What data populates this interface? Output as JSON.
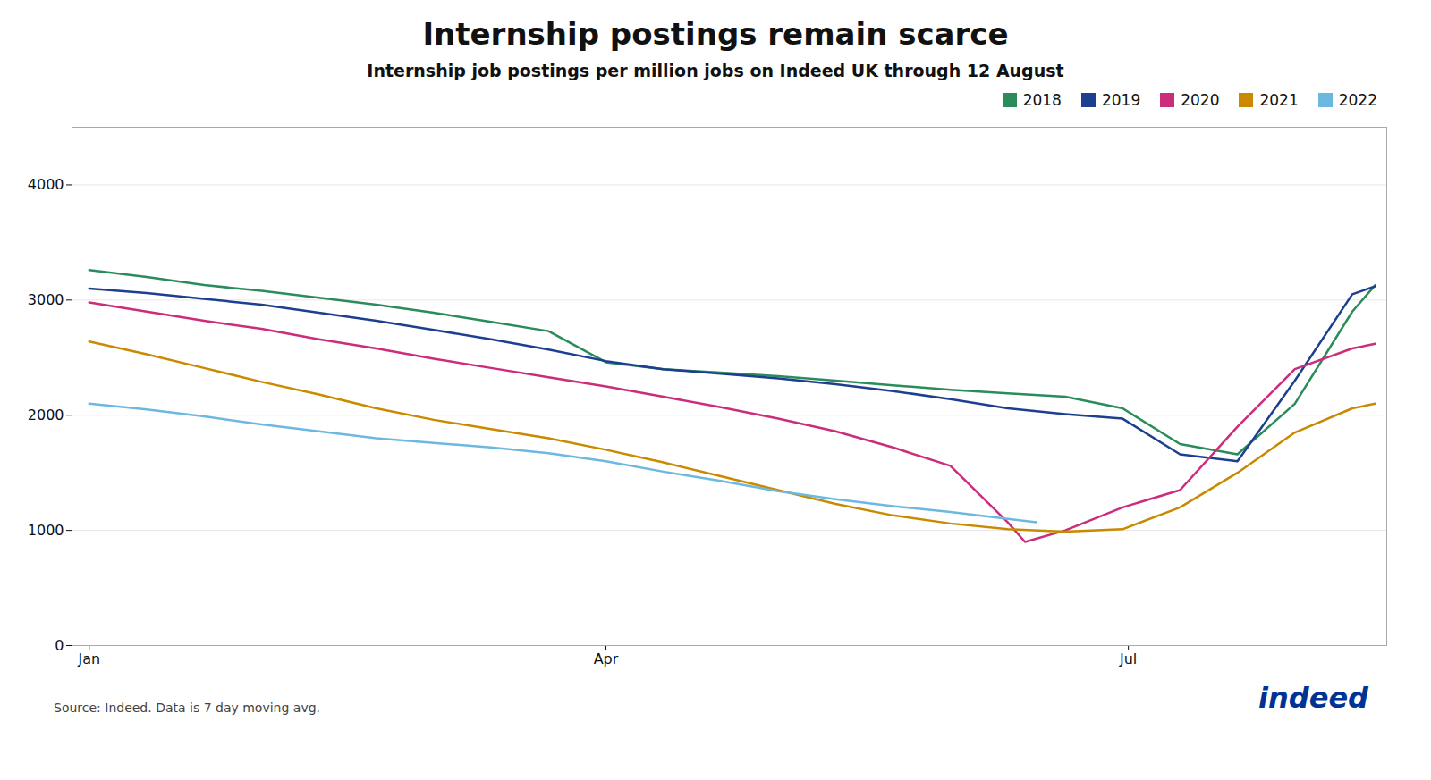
{
  "chart_data": {
    "type": "line",
    "title": "Internship postings remain scarce",
    "subtitle": "Internship job postings per million jobs on Indeed UK through 12 August",
    "annotations": [
      "Source: Indeed. Data is 7 day moving avg.",
      "indeed"
    ],
    "xlim": [
      -3,
      226
    ],
    "xticks": [
      {
        "value": 0,
        "label": "Jan"
      },
      {
        "value": 90,
        "label": "Apr"
      },
      {
        "value": 181,
        "label": "Jul"
      }
    ],
    "ylim": [
      0,
      4500
    ],
    "yticks": [
      0,
      1000,
      2000,
      3000,
      4000
    ],
    "grid": true,
    "legend": "upper right",
    "series": [
      {
        "name": "2018",
        "color": "#2a8c5a",
        "x": [
          0,
          10,
          20,
          30,
          40,
          50,
          60,
          70,
          80,
          90,
          100,
          110,
          120,
          130,
          140,
          150,
          160,
          170,
          180,
          190,
          200,
          210,
          220,
          224
        ],
        "values": [
          3260,
          3200,
          3130,
          3080,
          3020,
          2960,
          2890,
          2810,
          2730,
          2460,
          2400,
          2370,
          2340,
          2300,
          2260,
          2220,
          2190,
          2160,
          2060,
          1750,
          1660,
          2100,
          2900,
          3130
        ]
      },
      {
        "name": "2019",
        "color": "#1c3f8f",
        "x": [
          0,
          10,
          20,
          30,
          40,
          50,
          60,
          70,
          80,
          90,
          100,
          110,
          120,
          130,
          140,
          150,
          160,
          170,
          180,
          190,
          200,
          210,
          220,
          224
        ],
        "values": [
          3100,
          3060,
          3010,
          2960,
          2890,
          2820,
          2740,
          2660,
          2570,
          2470,
          2400,
          2360,
          2320,
          2270,
          2210,
          2140,
          2060,
          2010,
          1970,
          1660,
          1600,
          2300,
          3050,
          3120
        ]
      },
      {
        "name": "2020",
        "color": "#cc2d7a",
        "x": [
          0,
          10,
          20,
          30,
          40,
          50,
          60,
          70,
          80,
          90,
          100,
          110,
          120,
          130,
          140,
          150,
          160,
          163,
          170,
          180,
          190,
          200,
          210,
          220,
          224
        ],
        "values": [
          2980,
          2900,
          2820,
          2750,
          2660,
          2580,
          2490,
          2410,
          2330,
          2250,
          2160,
          2070,
          1970,
          1860,
          1720,
          1560,
          1070,
          900,
          1000,
          1200,
          1350,
          1900,
          2400,
          2580,
          2620
        ]
      },
      {
        "name": "2021",
        "color": "#c98a00",
        "x": [
          0,
          10,
          20,
          30,
          40,
          50,
          60,
          70,
          80,
          90,
          100,
          110,
          120,
          130,
          140,
          150,
          160,
          170,
          180,
          190,
          200,
          210,
          220,
          224
        ],
        "values": [
          2640,
          2530,
          2410,
          2290,
          2180,
          2060,
          1960,
          1880,
          1800,
          1700,
          1590,
          1470,
          1350,
          1230,
          1130,
          1060,
          1010,
          990,
          1010,
          1200,
          1500,
          1850,
          2060,
          2100
        ]
      },
      {
        "name": "2022",
        "color": "#6db8e0",
        "x": [
          0,
          10,
          20,
          30,
          40,
          50,
          60,
          70,
          80,
          90,
          100,
          110,
          120,
          130,
          140,
          150,
          160,
          165
        ],
        "values": [
          2100,
          2050,
          1990,
          1920,
          1860,
          1800,
          1760,
          1720,
          1670,
          1600,
          1510,
          1430,
          1340,
          1270,
          1210,
          1160,
          1100,
          1070
        ]
      }
    ]
  }
}
